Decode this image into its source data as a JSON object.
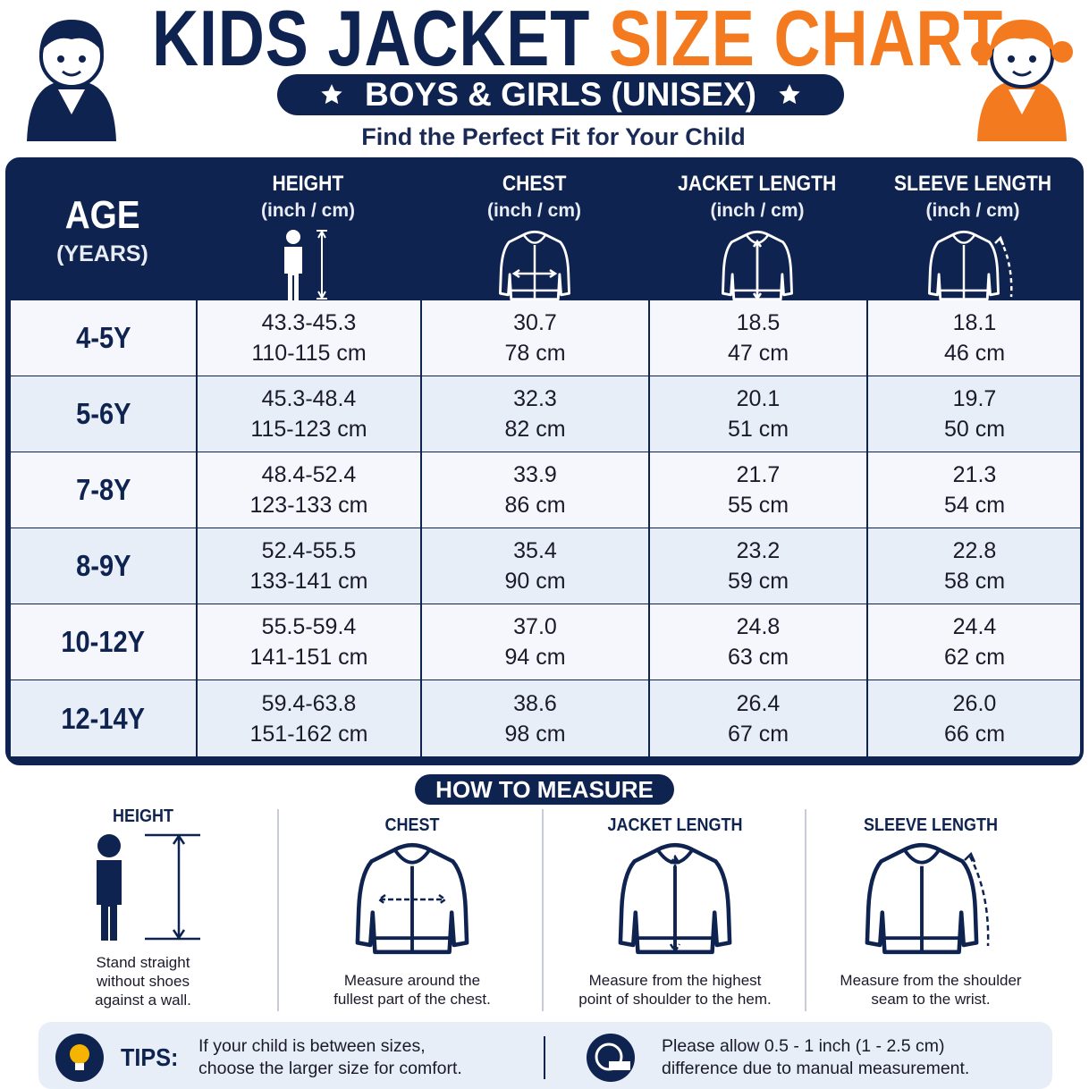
{
  "header": {
    "title_part1": "KIDS JACKET",
    "title_part2": "SIZE CHART",
    "badge": "BOYS & GIRLS (UNISEX)",
    "subtitle": "Find the Perfect Fit for Your Child"
  },
  "table": {
    "headers": [
      [
        "AGE",
        "(YEARS)"
      ],
      [
        "HEIGHT",
        "(inch / cm)"
      ],
      [
        "CHEST",
        "(inch / cm)"
      ],
      [
        "JACKET LENGTH",
        "(inch / cm)"
      ],
      [
        "SLEEVE LENGTH",
        "(inch / cm)"
      ]
    ],
    "rows": [
      [
        [
          "4-5Y"
        ],
        [
          "43.3-45.3",
          "110-115 cm"
        ],
        [
          "30.7",
          "78 cm"
        ],
        [
          "18.5",
          "47 cm"
        ],
        [
          "18.1",
          "46 cm"
        ]
      ],
      [
        [
          "5-6Y"
        ],
        [
          "45.3-48.4",
          "115-123 cm"
        ],
        [
          "32.3",
          "82 cm"
        ],
        [
          "20.1",
          "51 cm"
        ],
        [
          "19.7",
          "50 cm"
        ]
      ],
      [
        [
          "7-8Y"
        ],
        [
          "48.4-52.4",
          "123-133 cm"
        ],
        [
          "33.9",
          "86 cm"
        ],
        [
          "21.7",
          "55 cm"
        ],
        [
          "21.3",
          "54 cm"
        ]
      ],
      [
        [
          "8-9Y"
        ],
        [
          "52.4-55.5",
          "133-141 cm"
        ],
        [
          "35.4",
          "90 cm"
        ],
        [
          "23.2",
          "59 cm"
        ],
        [
          "22.8",
          "58 cm"
        ]
      ],
      [
        [
          "10-12Y"
        ],
        [
          "55.5-59.4",
          "141-151 cm"
        ],
        [
          "37.0",
          "94 cm"
        ],
        [
          "24.8",
          "63 cm"
        ],
        [
          "24.4",
          "62 cm"
        ]
      ],
      [
        [
          "12-14Y"
        ],
        [
          "59.4-63.8",
          "151-162 cm"
        ],
        [
          "38.6",
          "98 cm"
        ],
        [
          "26.4",
          "67 cm"
        ],
        [
          "26.0",
          "66 cm"
        ]
      ]
    ]
  },
  "measure": {
    "title": "HOW TO MEASURE",
    "items": [
      {
        "label": "HEIGHT",
        "text": [
          "Stand straight",
          "without shoes",
          "against a wall."
        ]
      },
      {
        "label": "CHEST",
        "text": [
          "Measure around the",
          "fullest part of the chest."
        ]
      },
      {
        "label": "JACKET LENGTH",
        "text": [
          "Measure from the highest",
          "point of shoulder to the hem."
        ]
      },
      {
        "label": "SLEEVE LENGTH",
        "text": [
          "Measure from the shoulder",
          "seam to the wrist."
        ]
      }
    ]
  },
  "tips": {
    "label": "TIPS:",
    "left": [
      "If your child is between sizes,",
      "choose the larger size for comfort."
    ],
    "right": [
      "Please allow 0.5 - 1 inch (1 - 2.5 cm)",
      "difference due to manual measurement."
    ]
  }
}
